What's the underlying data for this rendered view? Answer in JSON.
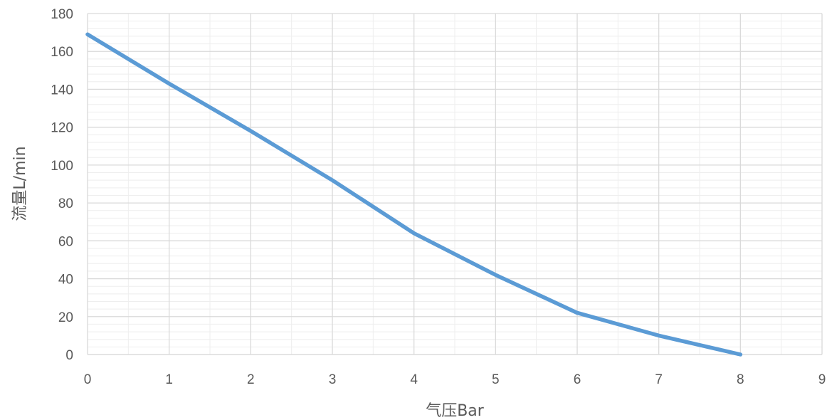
{
  "chart_data": {
    "type": "line",
    "title": "",
    "xlabel": "气压Bar",
    "ylabel": "流量L/min",
    "xlim": [
      0,
      9
    ],
    "ylim": [
      0,
      180
    ],
    "x_ticks": [
      0,
      1,
      2,
      3,
      4,
      5,
      6,
      7,
      8,
      9
    ],
    "y_ticks": [
      0,
      20,
      40,
      60,
      80,
      100,
      120,
      140,
      160,
      180
    ],
    "grid": true,
    "minor_grid": true,
    "legend": "none",
    "series": [
      {
        "color": "#5b9bd5",
        "x": [
          0,
          1,
          2,
          3,
          4,
          5,
          6,
          7,
          8
        ],
        "y": [
          169,
          143,
          118,
          92,
          64,
          42,
          22,
          10,
          0
        ]
      }
    ]
  }
}
